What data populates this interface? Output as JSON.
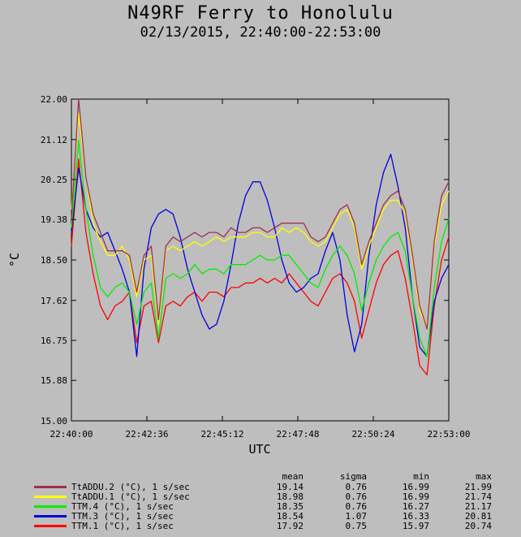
{
  "chart_data": {
    "type": "line",
    "title": "N49RF Ferry to Honolulu",
    "subtitle": "02/13/2015, 22:40:00-22:53:00",
    "xlabel": "UTC",
    "ylabel": "°C",
    "ylim": [
      15.0,
      22.0
    ],
    "xlim": [
      "22:40:00",
      "22:53:00"
    ],
    "y_ticks": [
      "15.00",
      "15.88",
      "16.75",
      "17.62",
      "18.50",
      "19.38",
      "20.25",
      "21.12",
      "22.00"
    ],
    "x_ticks": [
      "22:40:00",
      "22:42:36",
      "22:45:12",
      "22:47:48",
      "22:50:24",
      "22:53:00"
    ],
    "grid": false,
    "legend_position": "bottom",
    "legend_headers": {
      "mean": "mean",
      "sigma": "sigma",
      "min": "min",
      "max": "max"
    },
    "x": [
      "22:40:00",
      "22:40:15",
      "22:40:30",
      "22:40:45",
      "22:41:00",
      "22:41:15",
      "22:41:30",
      "22:41:45",
      "22:42:00",
      "22:42:15",
      "22:42:30",
      "22:42:45",
      "22:43:00",
      "22:43:15",
      "22:43:30",
      "22:43:45",
      "22:44:00",
      "22:44:15",
      "22:44:30",
      "22:44:45",
      "22:45:00",
      "22:45:15",
      "22:45:30",
      "22:45:45",
      "22:46:00",
      "22:46:15",
      "22:46:30",
      "22:46:45",
      "22:47:00",
      "22:47:15",
      "22:47:30",
      "22:47:45",
      "22:48:00",
      "22:48:15",
      "22:48:30",
      "22:48:45",
      "22:49:00",
      "22:49:15",
      "22:49:30",
      "22:49:45",
      "22:50:00",
      "22:50:15",
      "22:50:30",
      "22:50:45",
      "22:51:00",
      "22:51:15",
      "22:51:30",
      "22:51:45",
      "22:52:00",
      "22:52:15",
      "22:52:30",
      "22:52:45",
      "22:53:00"
    ],
    "series": [
      {
        "name": "TtADDU.2 (°C), 1 s/sec",
        "color": "#a0304a",
        "mean": "19.14",
        "sigma": "0.76",
        "min": "16.99",
        "max": "21.99",
        "values": [
          19.4,
          22.0,
          20.3,
          19.5,
          19.1,
          18.7,
          18.7,
          18.7,
          18.6,
          17.8,
          18.6,
          18.8,
          17.2,
          18.8,
          19.0,
          18.9,
          19.0,
          19.1,
          19.0,
          19.1,
          19.1,
          19.0,
          19.2,
          19.1,
          19.1,
          19.2,
          19.2,
          19.1,
          19.2,
          19.3,
          19.3,
          19.3,
          19.3,
          19.0,
          18.9,
          19.0,
          19.3,
          19.6,
          19.7,
          19.3,
          18.4,
          18.9,
          19.3,
          19.7,
          19.9,
          20.0,
          19.6,
          18.6,
          17.5,
          17.0,
          18.9,
          19.9,
          20.2
        ]
      },
      {
        "name": "TtADDU.1 (°C), 1 s/sec",
        "color": "#ffff00",
        "mean": "18.98",
        "sigma": "0.76",
        "min": "16.99",
        "max": "21.74",
        "values": [
          19.6,
          21.7,
          20.3,
          19.3,
          18.9,
          18.6,
          18.6,
          18.8,
          18.5,
          17.7,
          18.5,
          18.6,
          17.1,
          18.7,
          18.8,
          18.7,
          18.8,
          18.9,
          18.8,
          18.9,
          19.0,
          18.9,
          19.0,
          19.0,
          19.0,
          19.1,
          19.1,
          19.0,
          19.0,
          19.2,
          19.1,
          19.2,
          19.1,
          18.9,
          18.8,
          18.9,
          19.2,
          19.5,
          19.6,
          19.2,
          18.3,
          18.8,
          19.2,
          19.6,
          19.8,
          19.8,
          19.5,
          18.5,
          17.4,
          17.0,
          18.8,
          19.7,
          20.0
        ]
      },
      {
        "name": "TTM.4 (°C), 1 s/sec",
        "color": "#00ee00",
        "mean": "18.35",
        "sigma": "0.76",
        "min": "16.27",
        "max": "21.17",
        "values": [
          19.2,
          21.1,
          19.6,
          18.6,
          17.9,
          17.7,
          17.9,
          18.0,
          17.8,
          17.1,
          17.8,
          18.0,
          16.8,
          18.1,
          18.2,
          18.1,
          18.2,
          18.4,
          18.2,
          18.3,
          18.3,
          18.2,
          18.4,
          18.4,
          18.4,
          18.5,
          18.6,
          18.5,
          18.5,
          18.6,
          18.6,
          18.4,
          18.2,
          18.0,
          17.9,
          18.3,
          18.6,
          18.8,
          18.6,
          18.2,
          17.4,
          18.0,
          18.5,
          18.8,
          19.0,
          19.1,
          18.7,
          17.7,
          16.8,
          16.4,
          17.9,
          18.9,
          19.4
        ]
      },
      {
        "name": "TTM.3 (°C), 1 s/sec",
        "color": "#0000dd",
        "mean": "18.54",
        "sigma": "1.07",
        "min": "16.33",
        "max": "20.81",
        "values": [
          19.1,
          20.5,
          19.6,
          19.2,
          19.0,
          19.1,
          18.7,
          18.3,
          17.8,
          16.4,
          18.3,
          19.2,
          19.5,
          19.6,
          19.5,
          19.0,
          18.3,
          17.8,
          17.3,
          17.0,
          17.1,
          17.6,
          18.4,
          19.3,
          19.9,
          20.2,
          20.2,
          19.8,
          19.2,
          18.5,
          18.0,
          17.8,
          17.9,
          18.1,
          18.2,
          18.7,
          19.1,
          18.5,
          17.3,
          16.5,
          17.1,
          18.6,
          19.7,
          20.4,
          20.8,
          20.1,
          19.2,
          17.7,
          16.6,
          16.4,
          17.6,
          18.1,
          18.4
        ]
      },
      {
        "name": "TTM.1 (°C), 1 s/sec",
        "color": "#ff0000",
        "mean": "17.92",
        "sigma": "0.75",
        "min": "15.97",
        "max": "20.74",
        "values": [
          18.8,
          20.7,
          19.1,
          18.2,
          17.5,
          17.2,
          17.5,
          17.6,
          17.8,
          16.7,
          17.5,
          17.6,
          16.7,
          17.5,
          17.6,
          17.5,
          17.7,
          17.8,
          17.6,
          17.8,
          17.8,
          17.7,
          17.9,
          17.9,
          18.0,
          18.0,
          18.1,
          18.0,
          18.1,
          18.0,
          18.2,
          18.0,
          17.8,
          17.6,
          17.5,
          17.8,
          18.1,
          18.2,
          18.0,
          17.6,
          16.8,
          17.4,
          18.0,
          18.4,
          18.6,
          18.7,
          18.1,
          17.2,
          16.2,
          16.0,
          17.5,
          18.5,
          19.0
        ]
      }
    ]
  }
}
